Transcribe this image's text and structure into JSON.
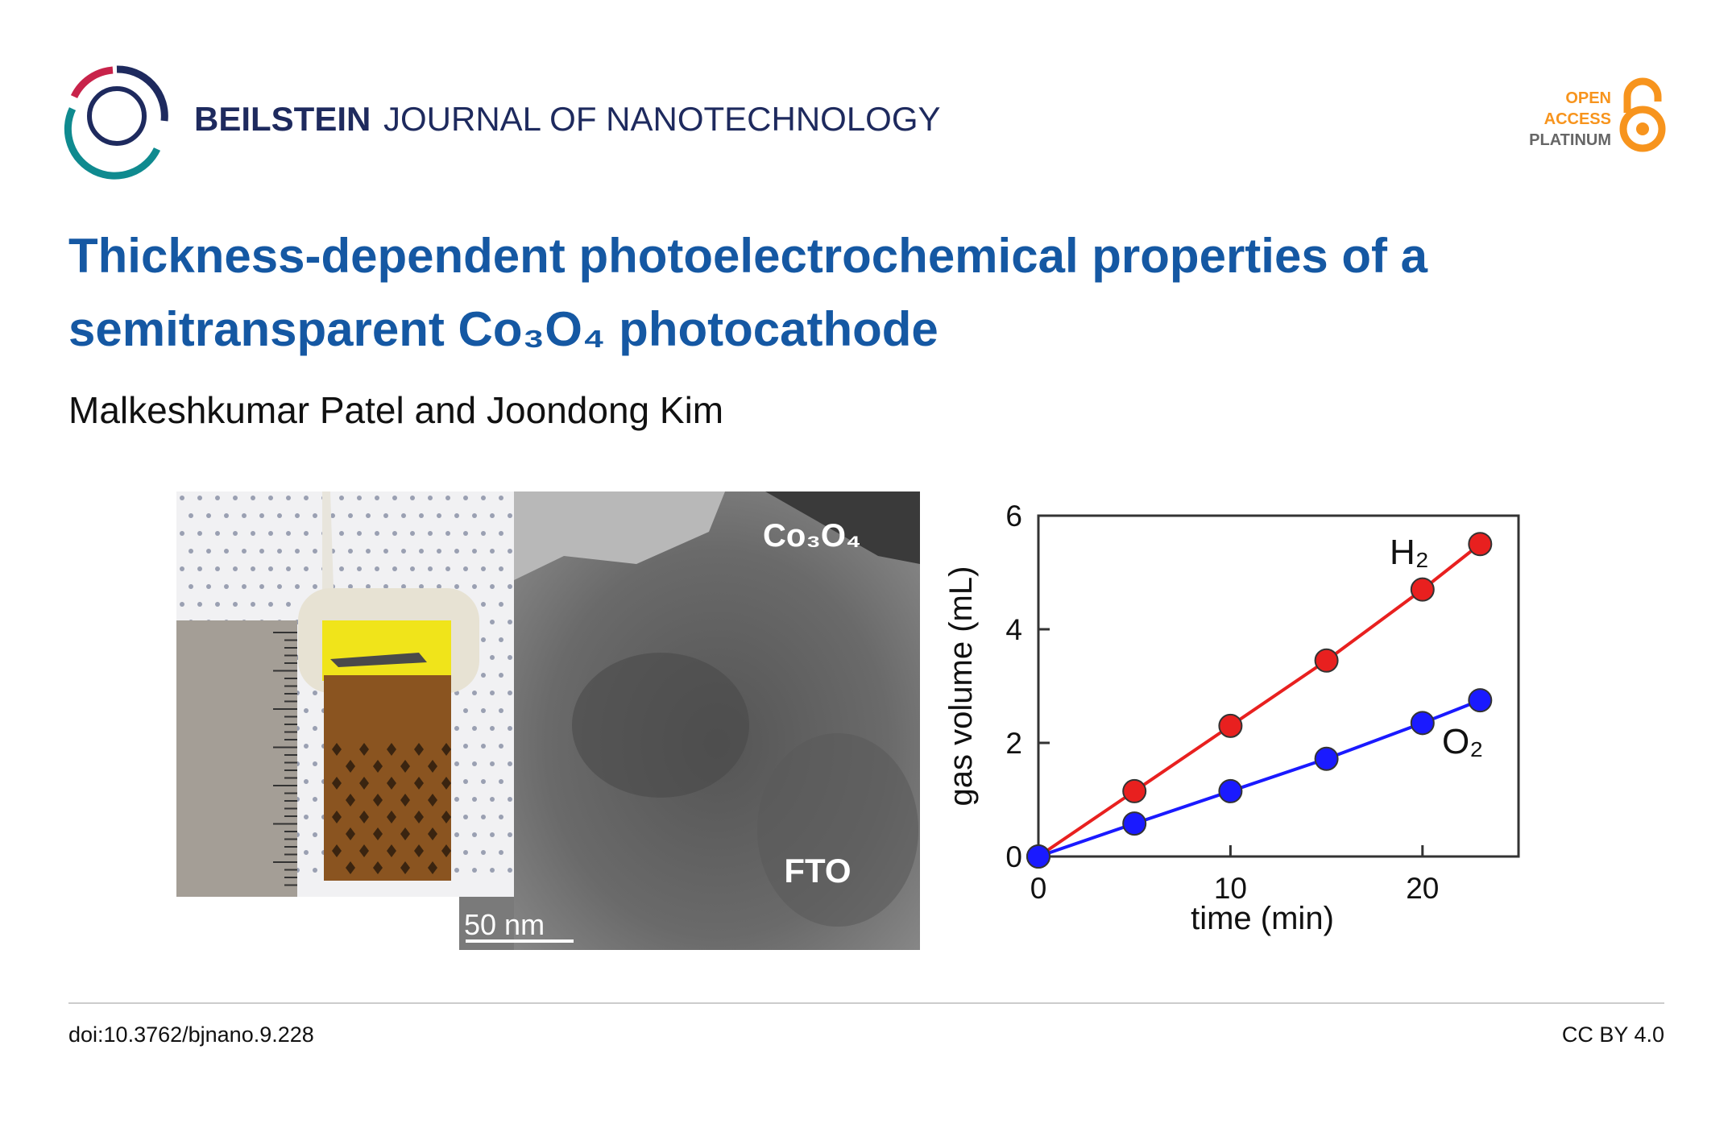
{
  "header": {
    "journal_bold": "BEILSTEIN",
    "journal_rest": "JOURNAL OF NANOTECHNOLOGY",
    "badge": [
      "OPEN",
      "ACCESS",
      "PLATINUM"
    ]
  },
  "title": "Thickness-dependent photoelectrochemical properties of a semitransparent Co₃O₄ photocathode",
  "authors": "Malkeshkumar Patel and Joondong Kim",
  "figure": {
    "tem_top_label": "Co₃O₄",
    "tem_bottom_label": "FTO",
    "scale_bar": "50 nm"
  },
  "chart_data": {
    "type": "line",
    "x_label": "time (min)",
    "y_label": "gas volume (mL)",
    "x": [
      0,
      5,
      10,
      15,
      20,
      23
    ],
    "series": [
      {
        "name": "H₂",
        "color": "#e8201f",
        "values": [
          0,
          1.15,
          2.3,
          3.45,
          4.7,
          5.5
        ]
      },
      {
        "name": "O₂",
        "color": "#1a1aff",
        "values": [
          0,
          0.58,
          1.15,
          1.72,
          2.35,
          2.75
        ]
      }
    ],
    "xlim": [
      0,
      25
    ],
    "ylim": [
      0,
      6
    ],
    "xticks": [
      0,
      10,
      20
    ],
    "yticks": [
      0,
      2,
      4,
      6
    ]
  },
  "footer": {
    "doi": "doi:10.3762/bjnano.9.228",
    "license": "CC BY 4.0"
  }
}
